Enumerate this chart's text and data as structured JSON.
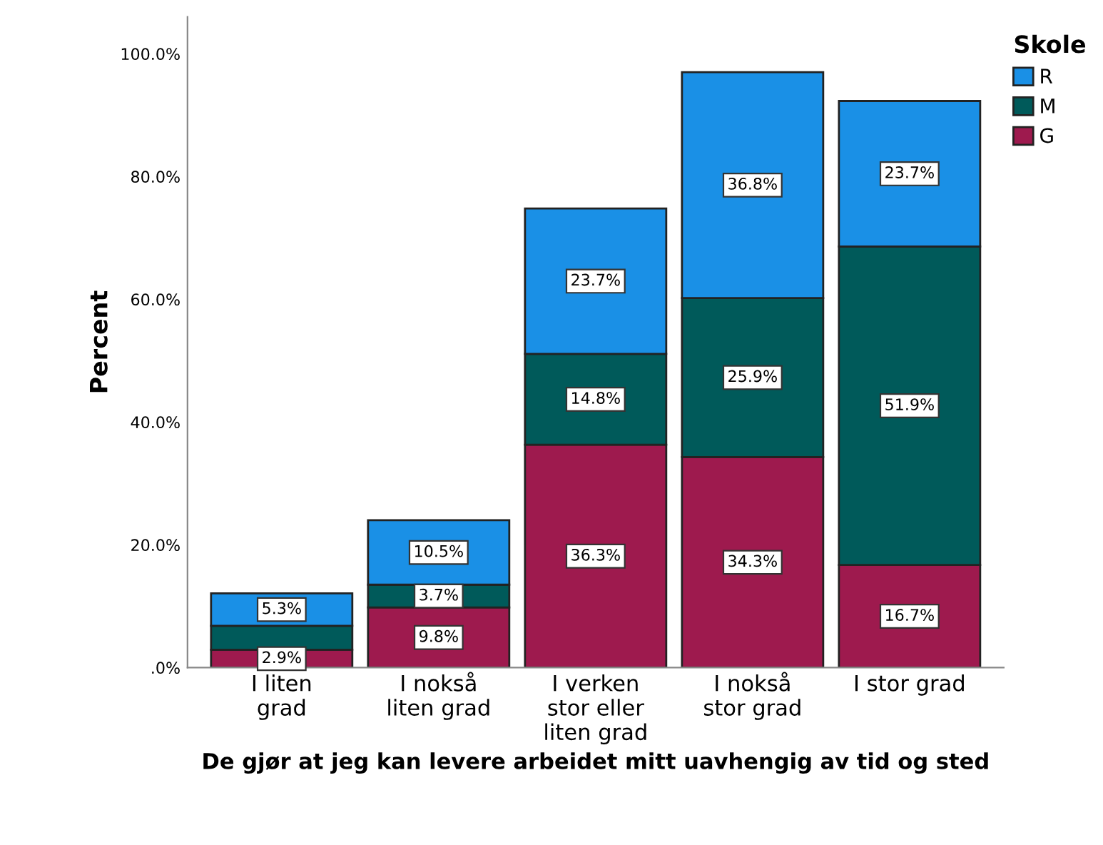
{
  "chart_data": {
    "type": "bar",
    "stacked": true,
    "xlabel": "De gjør at jeg kan levere arbeidet mitt uavhengig av tid og sted",
    "ylabel": "Percent",
    "legend_title": "Skole",
    "legend": "top right",
    "categories": [
      "I liten\ngrad",
      "I nokså\nliten grad",
      "I verken\nstor eller\nliten grad",
      "I nokså\nstor grad",
      "I stor grad"
    ],
    "series": [
      {
        "name": "G",
        "color": "#9e1a4e",
        "values": [
          2.9,
          9.8,
          36.3,
          34.3,
          16.7
        ],
        "value_labels": [
          "2.9%",
          "9.8%",
          "36.3%",
          "34.3%",
          "16.7%"
        ]
      },
      {
        "name": "M",
        "color": "#005a5a",
        "values": [
          3.9,
          3.7,
          14.8,
          25.9,
          51.9
        ],
        "value_labels": [
          null,
          "3.7%",
          "14.8%",
          "25.9%",
          "51.9%"
        ]
      },
      {
        "name": "R",
        "color": "#1a90e6",
        "values": [
          5.3,
          10.5,
          23.7,
          36.8,
          23.7
        ],
        "value_labels": [
          "5.3%",
          "10.5%",
          "23.7%",
          "36.8%",
          "23.7%"
        ]
      }
    ],
    "ylim": [
      0,
      106
    ],
    "yticks": [
      {
        "value": 0,
        "label": ".0%"
      },
      {
        "value": 20,
        "label": "20.0%"
      },
      {
        "value": 40,
        "label": "40.0%"
      },
      {
        "value": 60,
        "label": "60.0%"
      },
      {
        "value": 80,
        "label": "80.0%"
      },
      {
        "value": 100,
        "label": "100.0%"
      }
    ]
  }
}
